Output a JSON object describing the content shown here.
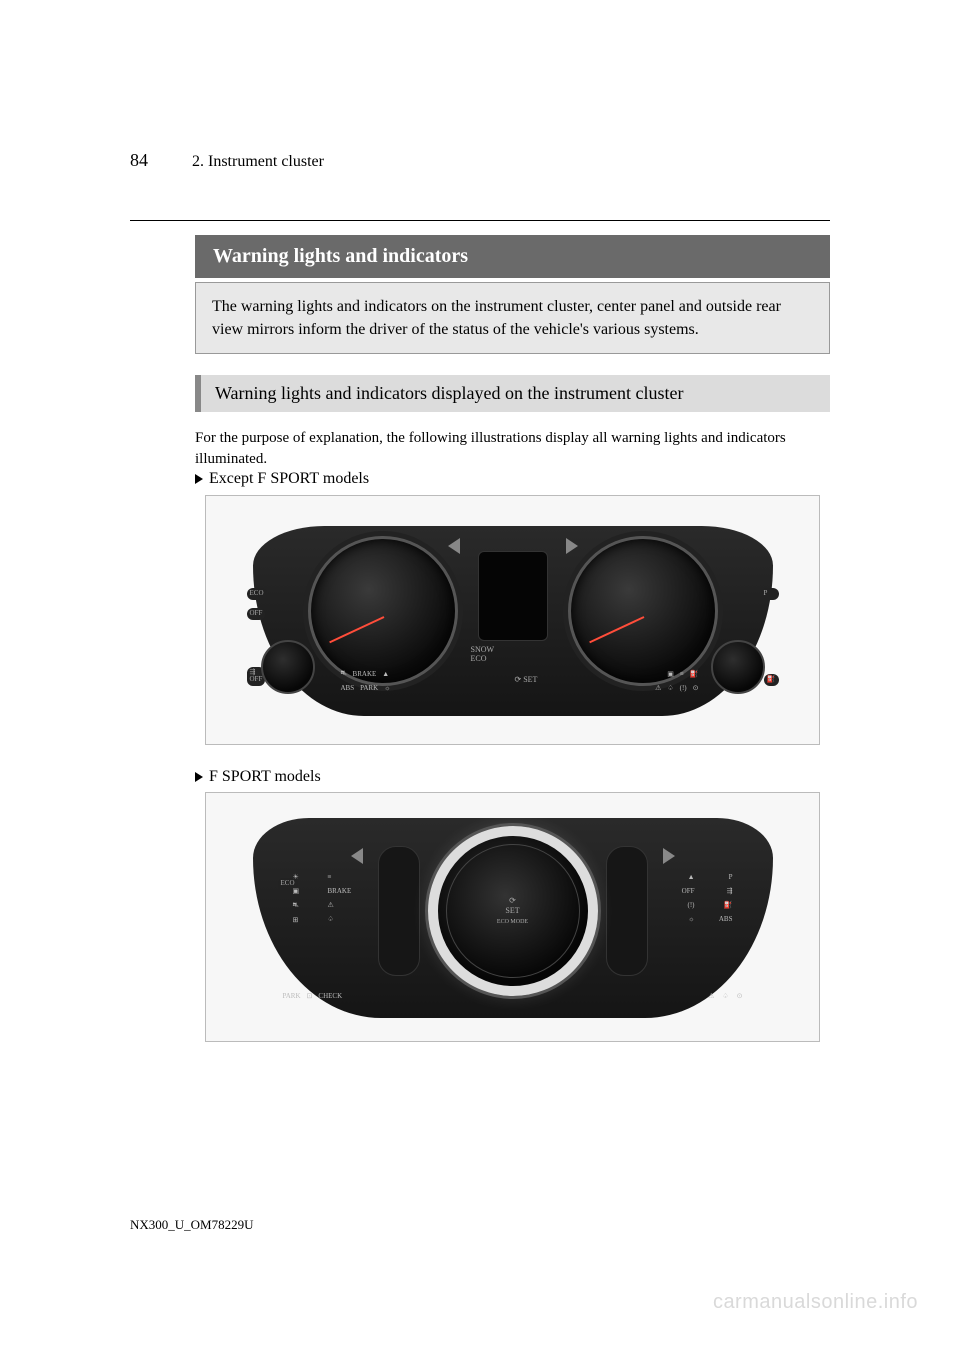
{
  "colors": {
    "page_bg": "#ffffff",
    "title_bar_bg": "#6a6a6a",
    "title_bar_text": "#ffffff",
    "intro_bg": "#e8e8e8",
    "sub_bar_bg": "#dcdcdc",
    "sub_bar_border": "#888888",
    "cluster_bg_dark": "#151515",
    "dial_border": "#555555",
    "needle": "#ff4d3a",
    "icon_text": "#bbbbbb",
    "watermark": "#d9d9d9"
  },
  "page": {
    "number": "84",
    "breadcrumb": "2. Instrument cluster"
  },
  "title": "Warning lights and indicators",
  "intro": "The warning lights and indicators on the instrument cluster, center panel and outside rear view mirrors inform the driver of the status of the vehicle's various systems.",
  "subsection": "Warning lights and indicators displayed on the instrument cluster",
  "note": "For the purpose of explanation, the following illustrations display all warning lights and indicators illuminated.",
  "variant1": "Except F SPORT models",
  "variant2": "F SPORT models",
  "fig1": {
    "type": "instrument_cluster",
    "background": "#151515",
    "dial_color": "#0a0a0a",
    "dial_rim": "#555555",
    "needle_color": "#ff4d3a",
    "center_mode_lines": [
      "SNOW",
      "ECO"
    ],
    "cruise_label": "SET",
    "left_side_tabs": [
      "ECO",
      "OFF"
    ],
    "right_side_tabs": [
      "P"
    ],
    "bottom_left_row1": [
      "⛐",
      "BRAKE",
      "▲"
    ],
    "bottom_left_row2": [
      "ABS",
      "PARK",
      "☼"
    ],
    "bottom_right_row1": [
      "▣",
      "≡",
      "⛽"
    ],
    "bottom_right_row2": [
      "⚠",
      "♤",
      "(!)",
      "⊙"
    ],
    "cruise_icons": [
      "⟳",
      "SET"
    ],
    "mini_gauge_left_icon": "⇶",
    "mini_gauge_right_icon": "⛽"
  },
  "fig2": {
    "type": "instrument_cluster_fsport",
    "background": "#151515",
    "bigdial_rim": "#dddddd",
    "center_text_lines": [
      "⟳",
      "SET"
    ],
    "mode_pill": "ECO MODE",
    "left_stack1": [
      "☀",
      "▣",
      "⛐",
      "⊞"
    ],
    "left_stack2": [
      "≡",
      "BRAKE",
      "⚠",
      "♤"
    ],
    "right_stack1": [
      "P",
      "⇶",
      "⛽",
      "ABS"
    ],
    "right_stack2": [
      "▲",
      "OFF",
      "(!)",
      "☼"
    ],
    "bottom_left": [
      "PARK",
      "⊡",
      "CHECK"
    ],
    "bottom_right": [
      "⚠",
      "♤",
      "⊙"
    ],
    "eco_pill": "ECO"
  },
  "footer": "NX300_U_OM78229U",
  "watermark": "carmanualsonline.info"
}
